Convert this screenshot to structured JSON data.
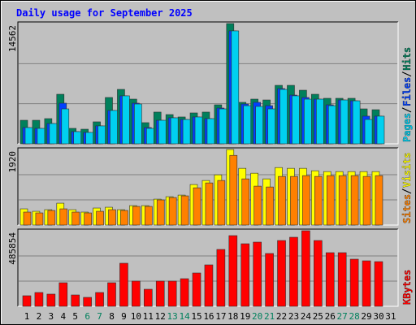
{
  "chart_data": [
    {
      "type": "bar",
      "title": "Daily usage for September 2025",
      "categories": [
        "1",
        "2",
        "3",
        "4",
        "5",
        "6",
        "7",
        "8",
        "9",
        "10",
        "11",
        "12",
        "13",
        "14",
        "15",
        "16",
        "17",
        "18",
        "19",
        "20",
        "21",
        "22",
        "23",
        "24",
        "25",
        "26",
        "27",
        "28",
        "29",
        "30",
        "31"
      ],
      "ylim": [
        0,
        14562
      ],
      "yticks": [
        14562
      ],
      "series": [
        {
          "name": "Hits",
          "color": "#00805c",
          "values": [
            2850,
            2850,
            3050,
            6000,
            1870,
            1770,
            2660,
            5610,
            6590,
            5410,
            2560,
            3840,
            3540,
            3250,
            3740,
            3840,
            4720,
            14562,
            5020,
            5410,
            5310,
            7080,
            7080,
            6490,
            6000,
            5510,
            5510,
            5510,
            4230,
            4130,
            null
          ]
        },
        {
          "name": "Files",
          "color": "#0040ff",
          "values": [
            1970,
            1870,
            2460,
            4920,
            1480,
            1380,
            2170,
            4040,
            5810,
            4920,
            1970,
            2850,
            3150,
            2950,
            3250,
            3050,
            4330,
            13680,
            4820,
            5020,
            4620,
            6690,
            5900,
            5610,
            5410,
            4720,
            5310,
            5210,
            3350,
            3350,
            null
          ]
        },
        {
          "name": "Pages",
          "color": "#00d0f0",
          "values": [
            1970,
            1870,
            2460,
            4230,
            1480,
            1380,
            2170,
            4040,
            5810,
            4820,
            1870,
            2850,
            3150,
            2950,
            3250,
            3050,
            4230,
            13680,
            4620,
            4530,
            4230,
            6590,
            5810,
            5410,
            5410,
            4620,
            5310,
            5210,
            2950,
            3350,
            null
          ]
        }
      ]
    },
    {
      "type": "bar",
      "categories": [
        "1",
        "2",
        "3",
        "4",
        "5",
        "6",
        "7",
        "8",
        "9",
        "10",
        "11",
        "12",
        "13",
        "14",
        "15",
        "16",
        "17",
        "18",
        "19",
        "20",
        "21",
        "22",
        "23",
        "24",
        "25",
        "26",
        "27",
        "28",
        "29",
        "30",
        "31"
      ],
      "ylim": [
        0,
        1920
      ],
      "yticks": [
        1920
      ],
      "series": [
        {
          "name": "Visits",
          "color": "#ffff00",
          "values": [
            412,
            350,
            391,
            556,
            391,
            330,
            433,
            453,
            391,
            494,
            494,
            659,
            721,
            762,
            1030,
            1133,
            1277,
            1920,
            1442,
            1318,
            1174,
            1462,
            1442,
            1442,
            1380,
            1359,
            1359,
            1359,
            1359,
            1359,
            null
          ]
        },
        {
          "name": "Sites",
          "color": "#ff8000",
          "values": [
            330,
            309,
            371,
            412,
            330,
            309,
            350,
            391,
            371,
            474,
            474,
            639,
            700,
            742,
            947,
            1071,
            1133,
            1771,
            1174,
            989,
            968,
            1236,
            1236,
            1256,
            1236,
            1256,
            1256,
            1256,
            1236,
            1256,
            null
          ]
        }
      ]
    },
    {
      "type": "bar",
      "categories": [
        "1",
        "2",
        "3",
        "4",
        "5",
        "6",
        "7",
        "8",
        "9",
        "10",
        "11",
        "12",
        "13",
        "14",
        "15",
        "16",
        "17",
        "18",
        "19",
        "20",
        "21",
        "22",
        "23",
        "24",
        "25",
        "26",
        "27",
        "28",
        "29",
        "30",
        "31"
      ],
      "ylim": [
        0,
        485854
      ],
      "yticks": [
        485854
      ],
      "series": [
        {
          "name": "KBytes",
          "color": "#ff0000",
          "values": [
            67900,
            88800,
            78400,
            151500,
            73100,
            57500,
            88800,
            151500,
            276900,
            162000,
            109700,
            162000,
            162000,
            177600,
            214200,
            266400,
            365700,
            454500,
            402200,
            412700,
            339600,
            423100,
            444000,
            485854,
            423100,
            344800,
            344800,
            303000,
            292500,
            287300,
            null
          ]
        }
      ]
    }
  ]
}
